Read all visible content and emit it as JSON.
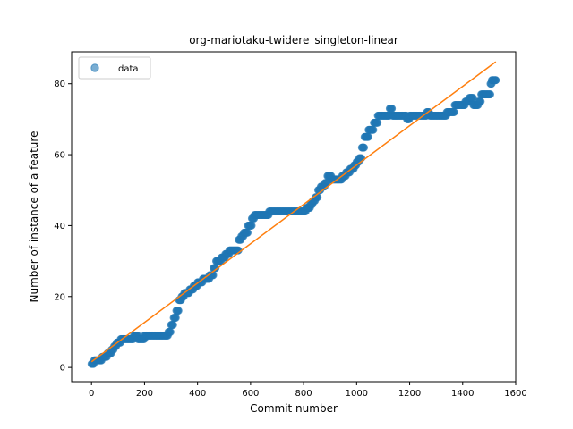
{
  "chart_data": {
    "type": "scatter",
    "title": "org-mariotaku-twidere_singleton-linear",
    "xlabel": "Commit number",
    "ylabel": "Number of instance of a feature",
    "xlim": [
      -75,
      1600
    ],
    "ylim": [
      -4,
      89
    ],
    "xticks": [
      0,
      200,
      400,
      600,
      800,
      1000,
      1200,
      1400,
      1600
    ],
    "yticks": [
      0,
      20,
      40,
      60,
      80
    ],
    "grid": false,
    "legend_position": "top-left",
    "series": [
      {
        "name": "data",
        "kind": "scatter",
        "color": "#1f77b4",
        "steps": [
          [
            0,
            1
          ],
          [
            10,
            2
          ],
          [
            40,
            3
          ],
          [
            60,
            4
          ],
          [
            75,
            5
          ],
          [
            85,
            6
          ],
          [
            95,
            7
          ],
          [
            110,
            8
          ],
          [
            160,
            9
          ],
          [
            175,
            8
          ],
          [
            200,
            9
          ],
          [
            280,
            9
          ],
          [
            290,
            10
          ],
          [
            300,
            12
          ],
          [
            310,
            14
          ],
          [
            320,
            16
          ],
          [
            330,
            19
          ],
          [
            340,
            20
          ],
          [
            350,
            21
          ],
          [
            370,
            22
          ],
          [
            385,
            23
          ],
          [
            400,
            24
          ],
          [
            420,
            25
          ],
          [
            445,
            26
          ],
          [
            460,
            28
          ],
          [
            470,
            30
          ],
          [
            490,
            31
          ],
          [
            505,
            32
          ],
          [
            520,
            33
          ],
          [
            540,
            33
          ],
          [
            555,
            36
          ],
          [
            565,
            37
          ],
          [
            575,
            38
          ],
          [
            590,
            40
          ],
          [
            605,
            42
          ],
          [
            615,
            43
          ],
          [
            660,
            43
          ],
          [
            670,
            44
          ],
          [
            700,
            44
          ],
          [
            800,
            44
          ],
          [
            810,
            45
          ],
          [
            825,
            46
          ],
          [
            835,
            47
          ],
          [
            845,
            48
          ],
          [
            855,
            50
          ],
          [
            865,
            51
          ],
          [
            880,
            52
          ],
          [
            890,
            54
          ],
          [
            905,
            53
          ],
          [
            930,
            53
          ],
          [
            945,
            54
          ],
          [
            960,
            55
          ],
          [
            975,
            56
          ],
          [
            990,
            57
          ],
          [
            1000,
            58
          ],
          [
            1010,
            59
          ],
          [
            1020,
            62
          ],
          [
            1030,
            65
          ],
          [
            1045,
            67
          ],
          [
            1065,
            69
          ],
          [
            1080,
            71
          ],
          [
            1110,
            71
          ],
          [
            1125,
            73
          ],
          [
            1135,
            71
          ],
          [
            1150,
            71
          ],
          [
            1180,
            71
          ],
          [
            1190,
            70
          ],
          [
            1200,
            71
          ],
          [
            1260,
            71
          ],
          [
            1265,
            72
          ],
          [
            1275,
            71
          ],
          [
            1330,
            71
          ],
          [
            1340,
            72
          ],
          [
            1360,
            72
          ],
          [
            1370,
            74
          ],
          [
            1400,
            74
          ],
          [
            1410,
            75
          ],
          [
            1425,
            76
          ],
          [
            1440,
            74
          ],
          [
            1460,
            75
          ],
          [
            1470,
            77
          ],
          [
            1500,
            77
          ],
          [
            1505,
            80
          ],
          [
            1510,
            81
          ],
          [
            1525,
            81
          ]
        ]
      },
      {
        "name": "",
        "kind": "line",
        "color": "#ff7f0e",
        "x": [
          0,
          1525
        ],
        "y": [
          1.6,
          86.2
        ]
      }
    ],
    "legend": [
      {
        "label": "data",
        "marker": "circle",
        "color": "#1f77b4"
      }
    ]
  }
}
